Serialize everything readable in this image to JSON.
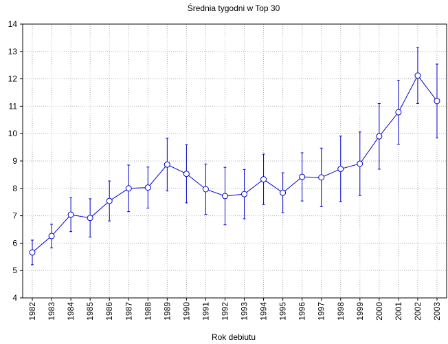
{
  "chart_data": {
    "type": "line",
    "title": "Średnia tygodni w Top 30",
    "x_label": "Rok debiutu",
    "categories": [
      "1982",
      "1983",
      "1984",
      "1985",
      "1986",
      "1987",
      "1988",
      "1989",
      "1990",
      "1991",
      "1992",
      "1993",
      "1994",
      "1995",
      "1996",
      "1997",
      "1998",
      "1999",
      "2000",
      "2001",
      "2002",
      "2003"
    ],
    "values": [
      5.66,
      6.26,
      7.04,
      6.92,
      7.54,
      8.0,
      8.03,
      8.87,
      8.53,
      7.97,
      7.72,
      7.79,
      8.33,
      7.84,
      8.42,
      8.4,
      8.71,
      8.9,
      9.9,
      10.78,
      12.12,
      11.19
    ],
    "errors": [
      0.45,
      0.43,
      0.62,
      0.7,
      0.73,
      0.85,
      0.75,
      0.96,
      1.06,
      0.92,
      1.05,
      0.9,
      0.92,
      0.73,
      0.88,
      1.07,
      1.2,
      1.16,
      1.2,
      1.17,
      1.02,
      1.35
    ],
    "color": "#0000cc",
    "ylim": [
      4,
      14
    ],
    "yticks": [
      4,
      5,
      6,
      7,
      8,
      9,
      10,
      11,
      12,
      13,
      14
    ],
    "grid": true
  }
}
